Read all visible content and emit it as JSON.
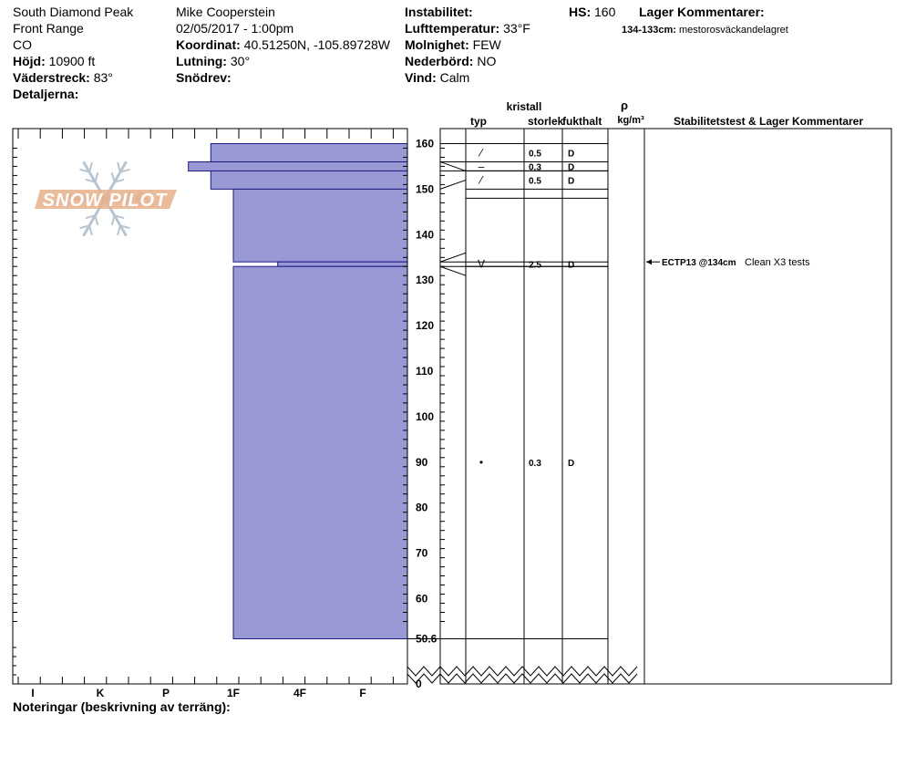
{
  "site": {
    "location": "South Diamond Peak",
    "range": "Front Range",
    "state": "CO",
    "elevation_label": "Höjd:",
    "elevation_value": "10900 ft",
    "aspect_label": "Väderstreck:",
    "aspect_value": "83°",
    "details_label": "Detaljerna:"
  },
  "observer": {
    "name": "Mike Cooperstein",
    "datetime": "02/05/2017 - 1:00pm",
    "coord_label": "Koordinat:",
    "coord_value": "40.51250N, -105.89728W",
    "slope_label": "Lutning:",
    "slope_value": "30°",
    "wind_drift_label": "Snödrev:"
  },
  "conditions": {
    "instability_label": "Instabilitet:",
    "air_temp_label": "Lufttemperatur:",
    "air_temp_value": "33°F",
    "sky_label": "Molnighet:",
    "sky_value": "FEW",
    "precip_label": "Nederbörd:",
    "precip_value": "NO",
    "wind_label": "Vind:",
    "wind_value": "Calm"
  },
  "hs": {
    "label": "HS:",
    "value": "160"
  },
  "layer_comments": {
    "title": "Lager Kommentarer:",
    "range": "134-133cm:",
    "text": "mestorosväckandelagret"
  },
  "notes_label": "Noteringar (beskrivning av terräng):",
  "logo": {
    "text": "SNOW PILOT"
  },
  "colors": {
    "bar_fill": "#9999d6",
    "bar_stroke": "#1a1a80",
    "logo_orange": "#e8b08a",
    "logo_blue": "#b8c4d0"
  },
  "chart_data": {
    "type": "bar",
    "orientation": "horizontal",
    "title": "",
    "hardness_axis_ticks": [
      "I",
      "K",
      "P",
      "1F",
      "4F",
      "F"
    ],
    "height_axis_ticks": [
      "160",
      "150",
      "140",
      "130",
      "120",
      "110",
      "100",
      "90",
      "80",
      "70",
      "60",
      "50.6",
      "0"
    ],
    "height_axis_break": "50.6 to 0",
    "columns": {
      "crystal_header": "kristall",
      "type": "typ",
      "size": "storlek",
      "moisture": "fukthalt",
      "density_symbol": "ρ",
      "density_unit": "kg/m³",
      "stability": "Stabilitetstest & Lager Kommentarer"
    },
    "layers": [
      {
        "top": 160,
        "bottom": 156,
        "hardness": "1F+",
        "grain_symbol": "⁄",
        "size": "0.5",
        "moisture": "D"
      },
      {
        "top": 156,
        "bottom": 154,
        "hardness": "P-",
        "grain_symbol": "–",
        "size": "0.3",
        "moisture": "D"
      },
      {
        "top": 154,
        "bottom": 150,
        "hardness": "1F+",
        "grain_symbol": "⁄",
        "size": "0.5",
        "moisture": "D"
      },
      {
        "top": 150,
        "bottom": 134,
        "hardness": "1F",
        "grain_symbol": "",
        "size": "",
        "moisture": ""
      },
      {
        "top": 134,
        "bottom": 133,
        "hardness": "4F+",
        "grain_symbol": "V",
        "size": "2.5",
        "moisture": "D"
      },
      {
        "top": 133,
        "bottom": 50.6,
        "hardness": "1F",
        "grain_symbol": "•",
        "size": "0.3",
        "moisture": "D"
      }
    ],
    "stability_tests": [
      {
        "depth": 134,
        "test": "ECTP13 @134cm",
        "comment": "Clean X3 tests"
      }
    ]
  }
}
